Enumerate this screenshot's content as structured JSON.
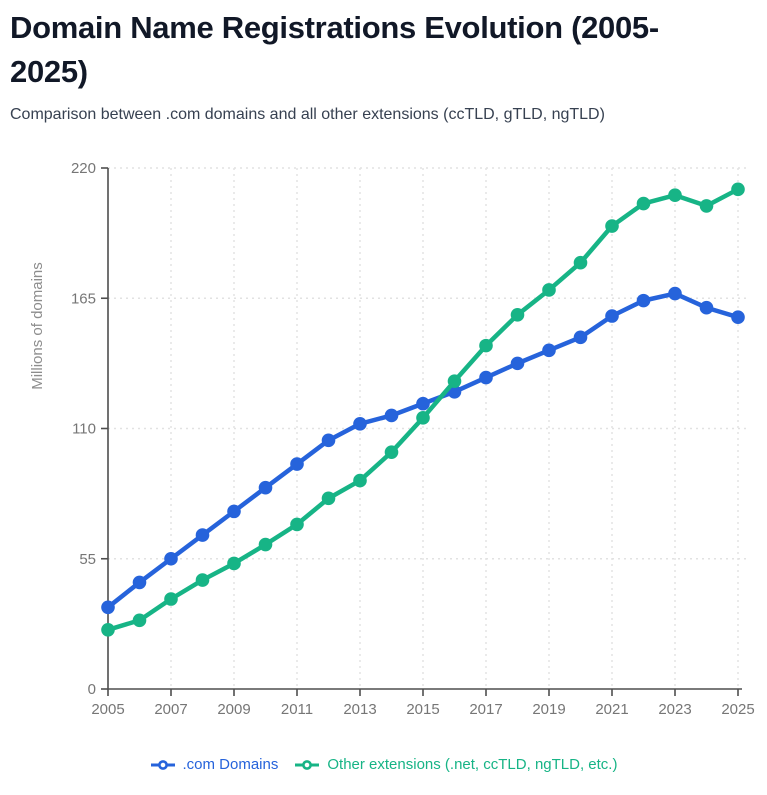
{
  "header": {
    "title": "Domain Name Registrations Evolution (2005-2025)",
    "subtitle": "Comparison between .com domains and all other extensions (ccTLD, gTLD, ngTLD)"
  },
  "chart_data": {
    "type": "line",
    "x": [
      2005,
      2006,
      2007,
      2008,
      2009,
      2010,
      2011,
      2012,
      2013,
      2014,
      2015,
      2016,
      2017,
      2018,
      2019,
      2020,
      2021,
      2022,
      2023,
      2024,
      2025
    ],
    "series": [
      {
        "name": ".com Domains",
        "color": "#2663db",
        "values": [
          34.5,
          45,
          55,
          65,
          75,
          85,
          95,
          105,
          112,
          115.5,
          120.5,
          125.5,
          131.5,
          137.5,
          143,
          148.5,
          157.5,
          164,
          167,
          161,
          157
        ]
      },
      {
        "name": "Other extensions (.net, ccTLD, ngTLD, etc.)",
        "color": "#17b486",
        "values": [
          25,
          29,
          38,
          46,
          53,
          61,
          69.5,
          80.5,
          88,
          100,
          114.5,
          130,
          145,
          158,
          168.5,
          180,
          195.5,
          205,
          208.5,
          204,
          211
        ]
      }
    ],
    "ylabel": "Millions of domains",
    "xlabel": "",
    "xlim": [
      2005,
      2025
    ],
    "ylim": [
      0,
      220
    ],
    "yticks": [
      0,
      55,
      110,
      165,
      220
    ],
    "xticks": [
      2005,
      2007,
      2009,
      2011,
      2013,
      2015,
      2017,
      2019,
      2021,
      2023,
      2025
    ],
    "grid": true,
    "grid_style": "dashed",
    "legend_position": "bottom",
    "marker": "circle"
  },
  "style": {
    "title_color": "#111827",
    "subtitle_color": "#374151",
    "axis_color": "#4e4e4e",
    "grid_color": "#e2e2e2",
    "tick_label_color": "#767676",
    "axis_title_color": "#8d8d8d",
    "background": "#ffffff"
  }
}
